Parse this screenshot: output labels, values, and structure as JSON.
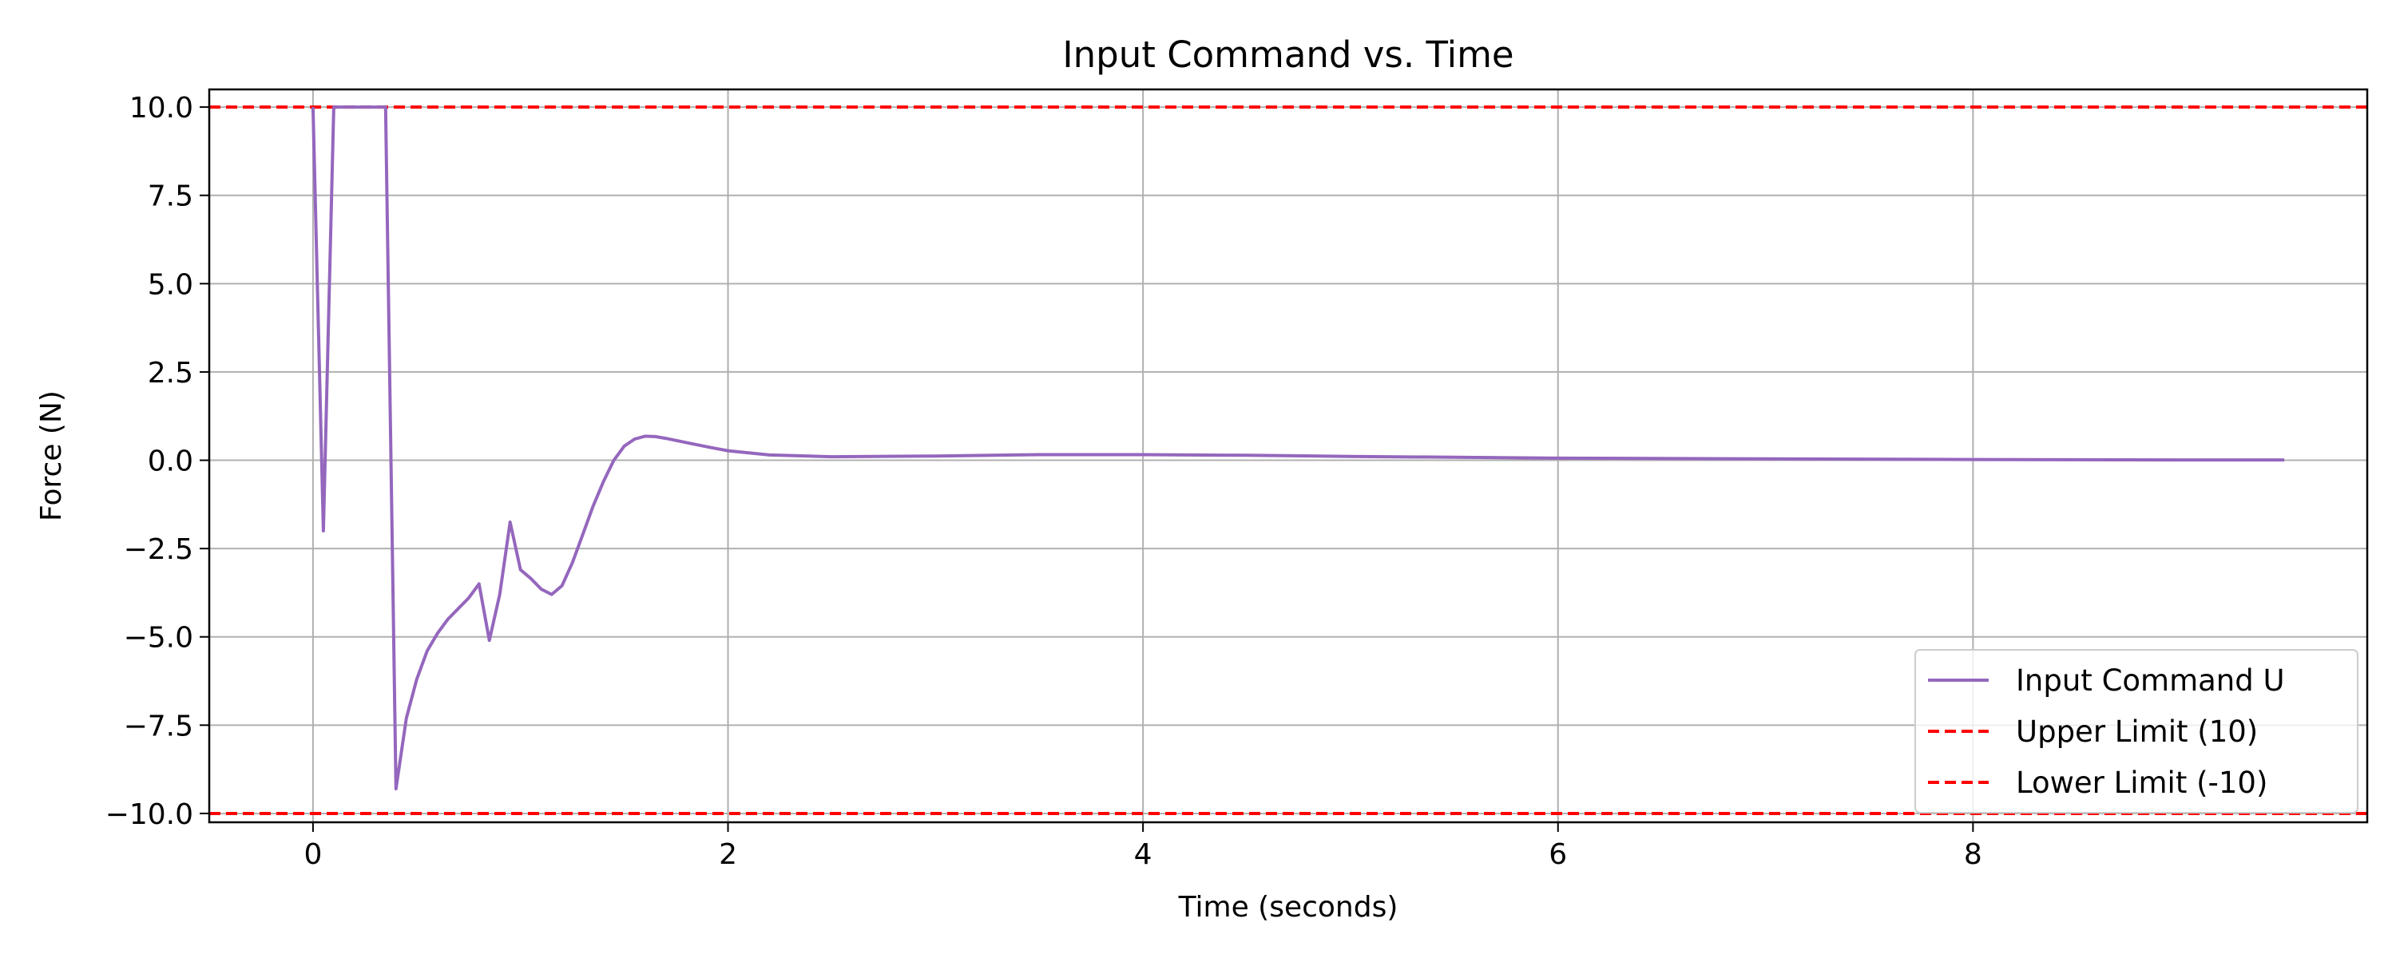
{
  "chart_data": {
    "type": "line",
    "title": "Input Command vs. Time",
    "xlabel": "Time (seconds)",
    "ylabel": "Force (N)",
    "xlim": [
      -0.5,
      9.9
    ],
    "ylim": [
      -10.25,
      10.5
    ],
    "x_ticks": [
      0,
      2,
      4,
      6,
      8
    ],
    "x_tick_labels": [
      "0",
      "2",
      "4",
      "6",
      "8"
    ],
    "y_ticks": [
      10.0,
      7.5,
      5.0,
      2.5,
      0.0,
      -2.5,
      -5.0,
      -7.5,
      -10.0
    ],
    "y_tick_labels": [
      "10.0",
      "7.5",
      "5.0",
      "2.5",
      "0.0",
      "−2.5",
      "−5.0",
      "−7.5",
      "−10.0"
    ],
    "grid": true,
    "legend_position": "lower-right",
    "series": [
      {
        "name": "Input Command U",
        "color": "#9467bd",
        "style": "solid",
        "x": [
          0.0,
          0.05,
          0.1,
          0.15,
          0.2,
          0.25,
          0.3,
          0.35,
          0.4,
          0.45,
          0.5,
          0.55,
          0.6,
          0.65,
          0.7,
          0.75,
          0.8,
          0.85,
          0.9,
          0.95,
          1.0,
          1.05,
          1.1,
          1.15,
          1.2,
          1.25,
          1.3,
          1.35,
          1.4,
          1.45,
          1.5,
          1.55,
          1.6,
          1.65,
          1.7,
          1.8,
          1.9,
          2.0,
          2.2,
          2.5,
          3.0,
          3.5,
          4.0,
          4.5,
          5.0,
          6.0,
          7.0,
          8.0,
          9.0,
          9.5
        ],
        "y": [
          10.0,
          -2.0,
          10.0,
          10.0,
          10.0,
          10.0,
          10.0,
          10.0,
          -9.3,
          -7.3,
          -6.2,
          -5.4,
          -4.9,
          -4.5,
          -4.2,
          -3.9,
          -3.5,
          -5.1,
          -3.8,
          -1.75,
          -3.1,
          -3.35,
          -3.65,
          -3.8,
          -3.55,
          -2.9,
          -2.1,
          -1.3,
          -0.6,
          0.0,
          0.4,
          0.6,
          0.68,
          0.67,
          0.62,
          0.5,
          0.38,
          0.27,
          0.15,
          0.1,
          0.12,
          0.16,
          0.16,
          0.14,
          0.11,
          0.06,
          0.04,
          0.02,
          0.01,
          0.01
        ]
      },
      {
        "name": "Upper Limit (10)",
        "color": "#ff0000",
        "style": "dashed",
        "hline": 10
      },
      {
        "name": "Lower Limit (-10)",
        "color": "#ff0000",
        "style": "dashed",
        "hline": -10
      }
    ]
  }
}
